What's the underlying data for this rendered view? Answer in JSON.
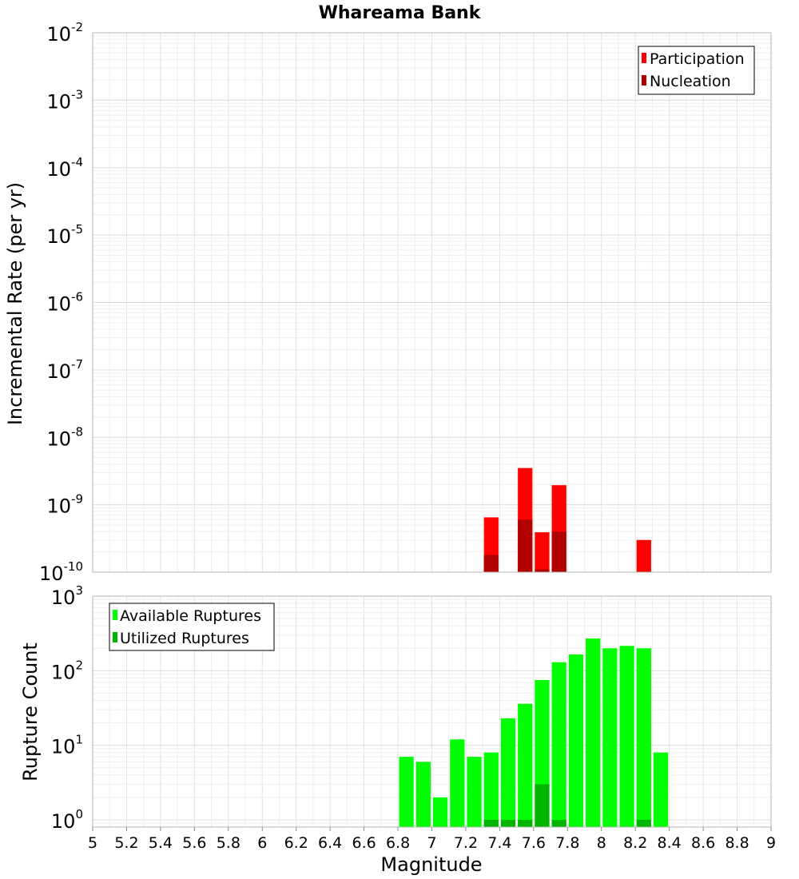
{
  "chart_data": [
    {
      "type": "bar",
      "title": "Whareama Bank",
      "xlabel": "",
      "ylabel": "Incremental Rate (per yr)",
      "y_scale": "log",
      "xlim": [
        5,
        9
      ],
      "ylim": [
        1e-10,
        0.01
      ],
      "bin_width": 0.1,
      "grid": true,
      "legend_position": "top-right",
      "series": [
        {
          "name": "Participation",
          "color": "#ff0000",
          "x": [
            7.35,
            7.55,
            7.65,
            7.75,
            8.25
          ],
          "values": [
            6.5e-10,
            3.5e-09,
            3.9e-10,
            1.95e-09,
            3e-10
          ]
        },
        {
          "name": "Nucleation",
          "color": "#b00000",
          "x": [
            7.35,
            7.55,
            7.65,
            7.75
          ],
          "values": [
            1.8e-10,
            6e-10,
            1.1e-10,
            4e-10
          ]
        }
      ]
    },
    {
      "type": "bar",
      "title": "",
      "xlabel": "Magnitude",
      "ylabel": "Rupture Count",
      "y_scale": "log",
      "xlim": [
        5,
        9
      ],
      "ylim": [
        0.8,
        1000
      ],
      "bin_width": 0.1,
      "grid": true,
      "legend_position": "top-left",
      "x_ticks": [
        "5",
        "5.2",
        "5.4",
        "5.6",
        "5.8",
        "6",
        "6.2",
        "6.4",
        "6.6",
        "6.8",
        "7",
        "7.2",
        "7.4",
        "7.6",
        "7.8",
        "8",
        "8.2",
        "8.4",
        "8.6",
        "8.8",
        "9"
      ],
      "series": [
        {
          "name": "Available Ruptures",
          "color": "#00ff00",
          "x": [
            6.85,
            6.95,
            7.05,
            7.15,
            7.25,
            7.35,
            7.45,
            7.55,
            7.65,
            7.75,
            7.85,
            7.95,
            8.05,
            8.15,
            8.25,
            8.35
          ],
          "values": [
            7,
            6,
            2,
            12,
            7,
            8,
            23,
            36,
            75,
            130,
            165,
            270,
            200,
            215,
            200,
            8
          ]
        },
        {
          "name": "Utilized Ruptures",
          "color": "#00b400",
          "x": [
            7.35,
            7.45,
            7.55,
            7.65,
            7.75,
            8.25
          ],
          "values": [
            1,
            1,
            1,
            3,
            1,
            1
          ]
        }
      ]
    }
  ]
}
